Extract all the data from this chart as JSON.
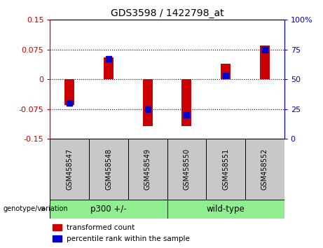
{
  "title": "GDS3598 / 1422798_at",
  "samples": [
    "GSM458547",
    "GSM458548",
    "GSM458549",
    "GSM458550",
    "GSM458551",
    "GSM458552"
  ],
  "red_bars": [
    -0.065,
    0.055,
    -0.118,
    -0.118,
    0.04,
    0.085
  ],
  "blue_dots_percentile": [
    30,
    67,
    25,
    20,
    53,
    75
  ],
  "ylim": [
    -0.15,
    0.15
  ],
  "yticks_left": [
    -0.15,
    -0.075,
    0,
    0.075,
    0.15
  ],
  "yticks_right": [
    0,
    25,
    50,
    75,
    100
  ],
  "bar_color": "#CC0000",
  "dot_color": "#0000CC",
  "legend_red": "transformed count",
  "legend_blue": "percentile rank within the sample",
  "bg_color": "#FFFFFF",
  "axis_left_color": "#CC0000",
  "axis_right_color": "#0000BB",
  "bar_width": 0.25,
  "dot_size": 28,
  "p300_color": "#90EE90",
  "wt_color": "#90EE90",
  "sample_box_color": "#C8C8C8"
}
